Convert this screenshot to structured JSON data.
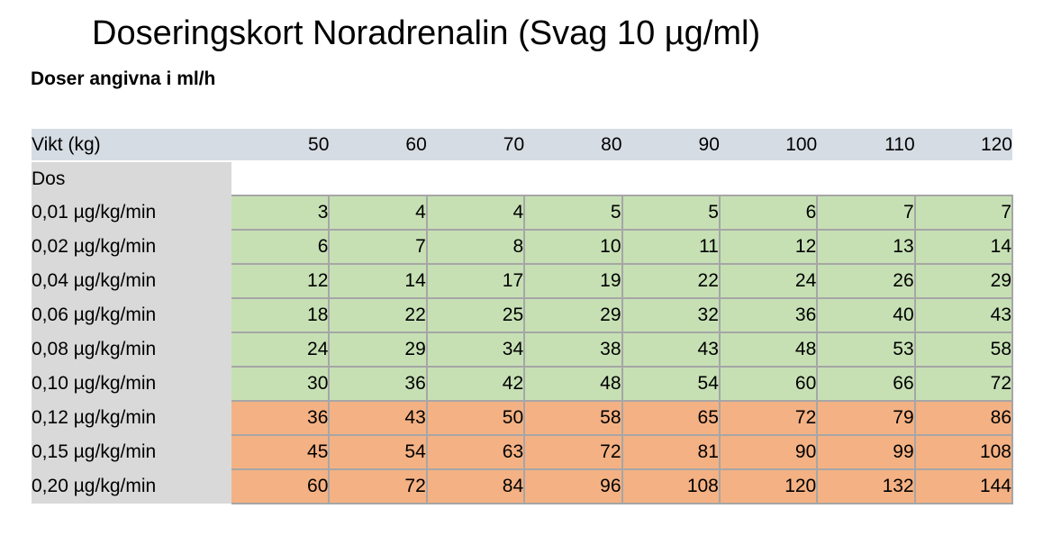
{
  "page": {
    "title": "Doseringskort Noradrenalin (Svag 10 µg/ml)",
    "subtitle": "Doser angivna i ml/h"
  },
  "table": {
    "weight_header_label": "Vikt (kg)",
    "weights": [
      "50",
      "60",
      "70",
      "80",
      "90",
      "100",
      "110",
      "120"
    ],
    "dose_header_label": "Dos",
    "dose_unit": "µg/kg/min",
    "rows": [
      {
        "dose": "0,01 µg/kg/min",
        "zone": "green",
        "values": [
          3,
          4,
          4,
          5,
          5,
          6,
          7,
          7
        ]
      },
      {
        "dose": "0,02 µg/kg/min",
        "zone": "green",
        "values": [
          6,
          7,
          8,
          10,
          11,
          12,
          13,
          14
        ]
      },
      {
        "dose": "0,04 µg/kg/min",
        "zone": "green",
        "values": [
          12,
          14,
          17,
          19,
          22,
          24,
          26,
          29
        ]
      },
      {
        "dose": "0,06 µg/kg/min",
        "zone": "green",
        "values": [
          18,
          22,
          25,
          29,
          32,
          36,
          40,
          43
        ]
      },
      {
        "dose": "0,08 µg/kg/min",
        "zone": "green",
        "values": [
          24,
          29,
          34,
          38,
          43,
          48,
          53,
          58
        ]
      },
      {
        "dose": "0,10 µg/kg/min",
        "zone": "green",
        "values": [
          30,
          36,
          42,
          48,
          54,
          60,
          66,
          72
        ]
      },
      {
        "dose": "0,12 µg/kg/min",
        "zone": "orange",
        "values": [
          36,
          43,
          50,
          58,
          65,
          72,
          79,
          86
        ]
      },
      {
        "dose": "0,15 µg/kg/min",
        "zone": "orange",
        "values": [
          45,
          54,
          63,
          72,
          81,
          90,
          99,
          108
        ]
      },
      {
        "dose": "0,20 µg/kg/min",
        "zone": "orange",
        "values": [
          60,
          72,
          84,
          96,
          108,
          120,
          132,
          144
        ]
      }
    ],
    "colors": {
      "green": "#c6e0b4",
      "orange": "#f4b183",
      "header_bg": "#d6dce4",
      "label_bg": "#d9d9d9",
      "border": "#a6a6a6"
    }
  }
}
